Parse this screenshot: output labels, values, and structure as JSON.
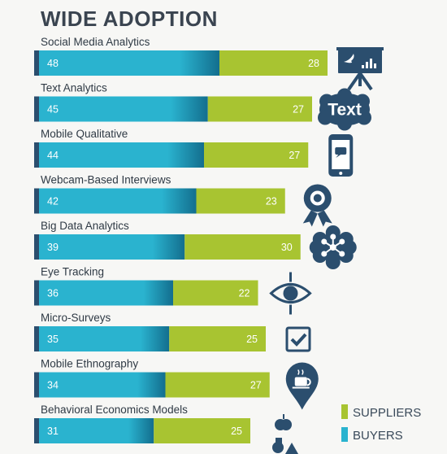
{
  "chart_data": {
    "type": "bar",
    "orientation": "horizontal",
    "stacked": true,
    "title": "WIDE ADOPTION",
    "categories": [
      "Social Media Analytics",
      "Text Analytics",
      "Mobile Qualitative",
      "Webcam-Based Interviews",
      "Big Data Analytics",
      "Eye Tracking",
      "Micro-Surveys",
      "Mobile Ethnography",
      "Behavioral Economics Models"
    ],
    "series": [
      {
        "name": "BUYERS",
        "color": "#2ab3cf",
        "values": [
          48,
          45,
          44,
          42,
          39,
          36,
          35,
          34,
          31
        ]
      },
      {
        "name": "SUPPLIERS",
        "color": "#a8c431",
        "values": [
          28,
          27,
          27,
          23,
          30,
          22,
          25,
          27,
          25
        ]
      }
    ],
    "icons": [
      "presentation-twitter-icon",
      "text-cloud-icon",
      "mobile-chat-icon",
      "webcam-icon",
      "network-cloud-icon",
      "eye-icon",
      "checkbox-icon",
      "coffee-pin-icon",
      "apple-shapes-icon"
    ],
    "legend": {
      "position": "bottom-right",
      "entries": [
        "SUPPLIERS",
        "BUYERS"
      ]
    },
    "grid": false,
    "accent_color": "#2b4e6e"
  }
}
